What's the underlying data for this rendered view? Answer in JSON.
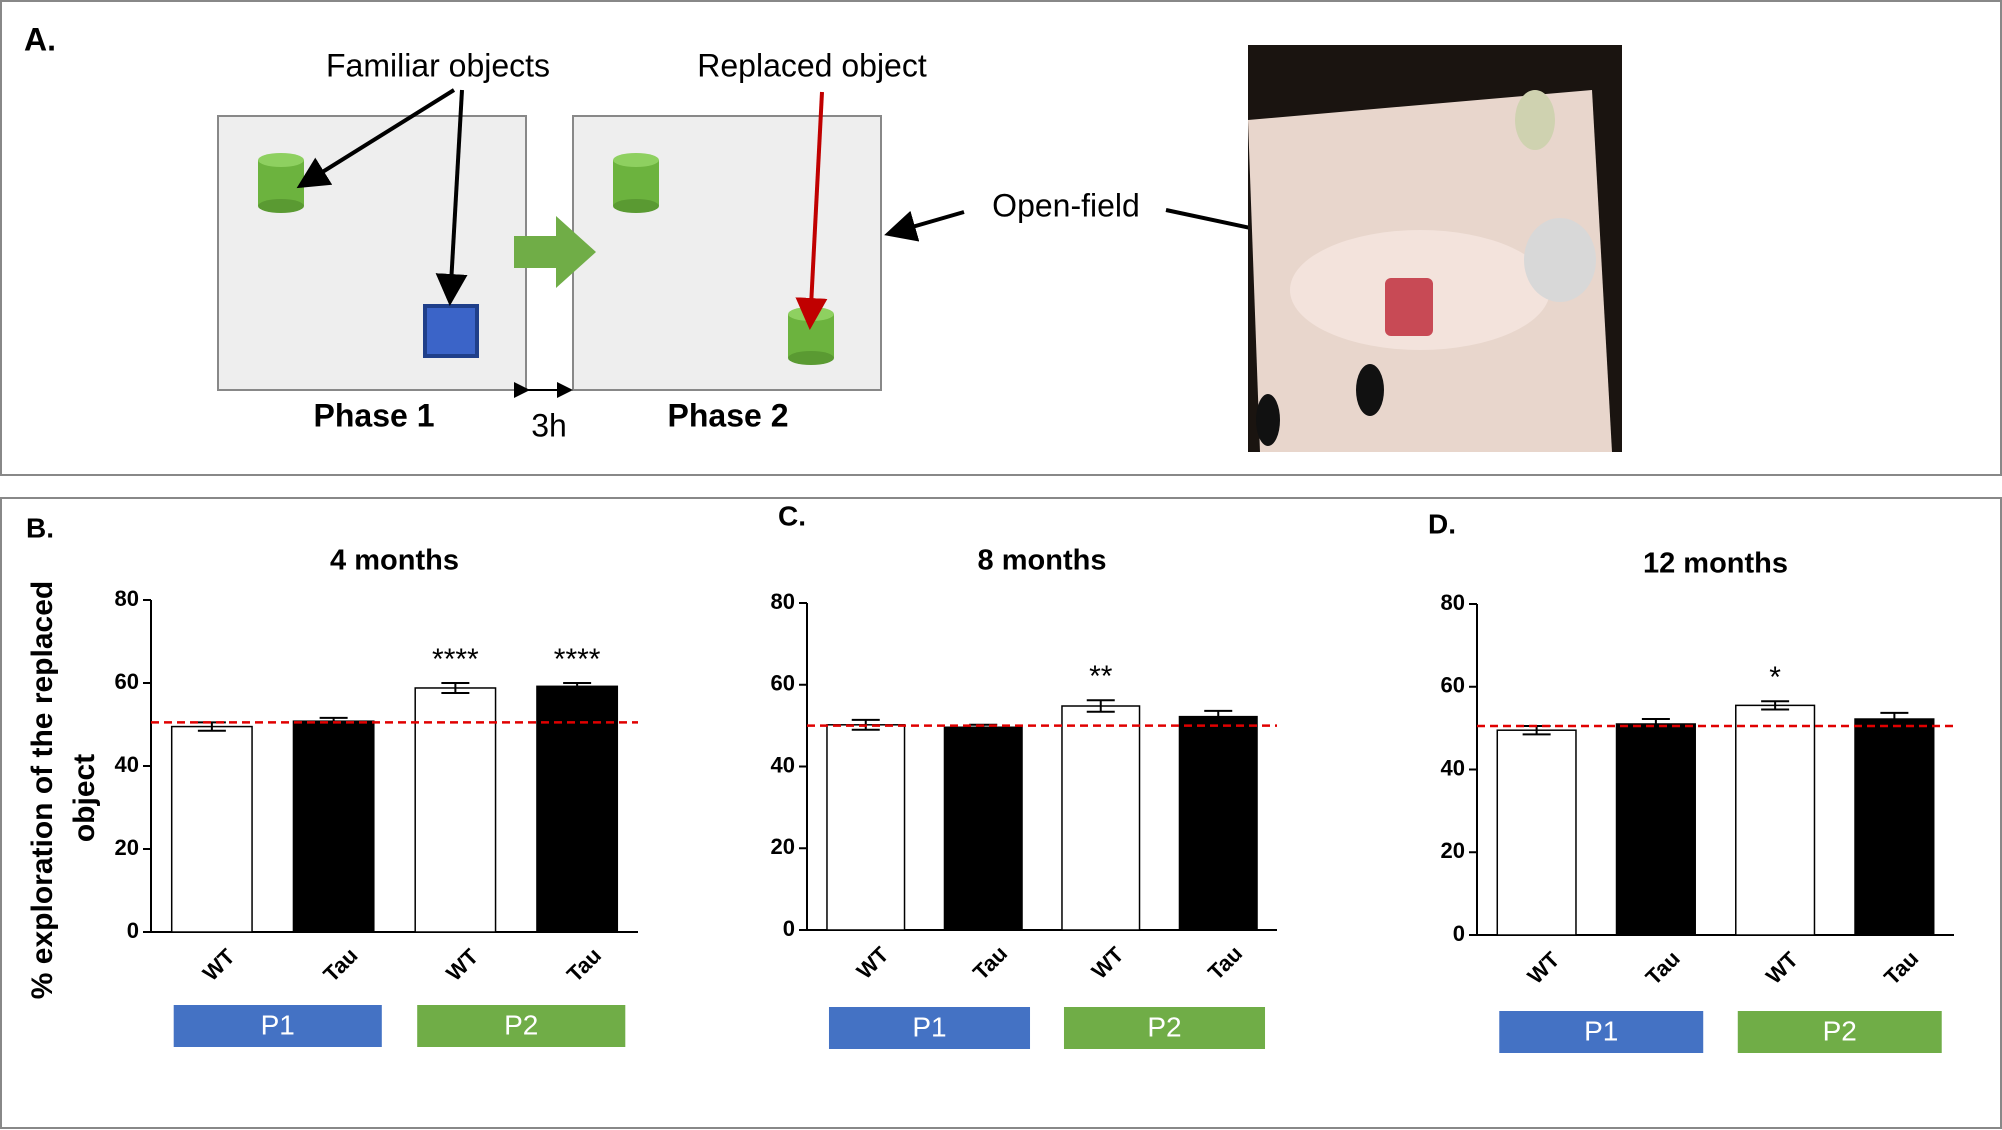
{
  "diagram": {
    "panel": "A.",
    "familiar": "Familiar objects",
    "replaced": "Replaced object",
    "openfield": "Open-field",
    "phase1": "Phase 1",
    "phase2": "Phase 2",
    "delay": "3h"
  },
  "ylabel_lines": [
    "% exploration of the replaced",
    "object"
  ],
  "chart_data": [
    {
      "type": "bar",
      "panel": "B.",
      "title": "4 months",
      "categories": [
        "WT",
        "Tau",
        "WT",
        "Tau"
      ],
      "values": [
        49.5,
        50.8,
        58.8,
        59.2
      ],
      "errors": [
        1,
        0.8,
        1.2,
        0.8
      ],
      "colors": [
        "#ffffff",
        "#000000",
        "#ffffff",
        "#000000"
      ],
      "annotations": [
        {
          "index": 2,
          "text": "****"
        },
        {
          "index": 3,
          "text": "****"
        }
      ],
      "reference_line": 50.5,
      "ylim": [
        0,
        80
      ],
      "yticks": [
        0,
        20,
        40,
        60,
        80
      ],
      "groups": [
        {
          "label": "P1",
          "color": "#4472c4"
        },
        {
          "label": "P2",
          "color": "#70ad47"
        }
      ]
    },
    {
      "type": "bar",
      "panel": "C.",
      "title": "8 months",
      "categories": [
        "WT",
        "Tau",
        "WT",
        "Tau"
      ],
      "values": [
        50.2,
        49.6,
        54.8,
        52.2
      ],
      "errors": [
        1.2,
        0.6,
        1.4,
        1.4
      ],
      "colors": [
        "#ffffff",
        "#000000",
        "#ffffff",
        "#000000"
      ],
      "annotations": [
        {
          "index": 2,
          "text": "**"
        }
      ],
      "reference_line": 50,
      "ylim": [
        0,
        80
      ],
      "yticks": [
        0,
        20,
        40,
        60,
        80
      ],
      "groups": [
        {
          "label": "P1",
          "color": "#4472c4"
        },
        {
          "label": "P2",
          "color": "#70ad47"
        }
      ]
    },
    {
      "type": "bar",
      "panel": "D.",
      "title": "12 months",
      "categories": [
        "WT",
        "Tau",
        "WT",
        "Tau"
      ],
      "values": [
        49.5,
        51,
        55.5,
        52.2
      ],
      "errors": [
        1,
        1.2,
        1,
        1.5
      ],
      "colors": [
        "#ffffff",
        "#000000",
        "#ffffff",
        "#000000"
      ],
      "annotations": [
        {
          "index": 2,
          "text": "*"
        }
      ],
      "reference_line": 50.5,
      "ylim": [
        0,
        80
      ],
      "yticks": [
        0,
        20,
        40,
        60,
        80
      ],
      "groups": [
        {
          "label": "P1",
          "color": "#4472c4"
        },
        {
          "label": "P2",
          "color": "#70ad47"
        }
      ]
    }
  ]
}
